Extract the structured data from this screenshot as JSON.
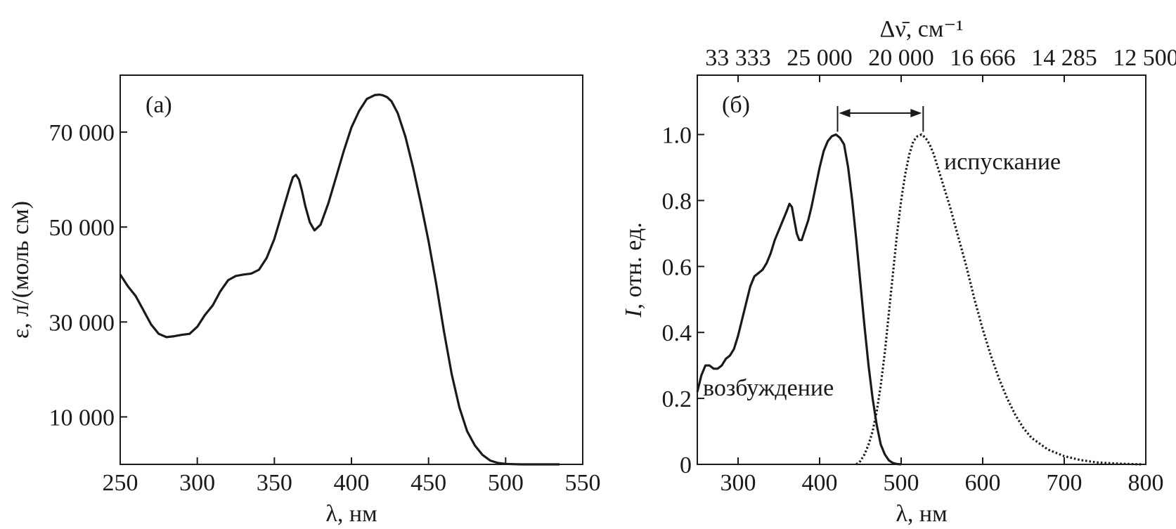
{
  "chart_data": [
    {
      "type": "line",
      "panel_label": "(а)",
      "xlabel": "λ, нм",
      "ylabel": "ε, л/(моль см)",
      "xlim": [
        250,
        550
      ],
      "ylim": [
        0,
        82000
      ],
      "x_ticks": [
        250,
        300,
        350,
        400,
        450,
        500,
        550
      ],
      "x_tick_labels": [
        "250",
        "300",
        "350",
        "400",
        "450",
        "500",
        "550"
      ],
      "y_ticks": [
        10000,
        30000,
        50000,
        70000
      ],
      "y_tick_labels": [
        "10 000",
        "30 000",
        "50 000",
        "70 000"
      ],
      "grid": false,
      "series": [
        {
          "style": "solid",
          "x": [
            250,
            255,
            260,
            265,
            270,
            275,
            280,
            285,
            290,
            295,
            300,
            305,
            310,
            315,
            320,
            325,
            330,
            335,
            340,
            345,
            350,
            355,
            360,
            362,
            364,
            366,
            368,
            370,
            373,
            376,
            380,
            385,
            390,
            395,
            400,
            405,
            410,
            415,
            418,
            420,
            423,
            426,
            430,
            435,
            440,
            445,
            450,
            455,
            460,
            465,
            470,
            475,
            480,
            485,
            490,
            495,
            500,
            505,
            510,
            520,
            535
          ],
          "y": [
            40000,
            37500,
            35500,
            32500,
            29500,
            27500,
            26800,
            27000,
            27300,
            27500,
            29000,
            31500,
            33500,
            36500,
            38800,
            39700,
            40000,
            40200,
            41000,
            43500,
            47500,
            53000,
            58500,
            60500,
            61000,
            60000,
            57500,
            54500,
            51000,
            49300,
            50500,
            55000,
            60500,
            66000,
            71000,
            74500,
            77000,
            77800,
            77900,
            77800,
            77400,
            76500,
            74000,
            69000,
            62500,
            55000,
            47000,
            38000,
            28000,
            19000,
            12000,
            7000,
            4000,
            2000,
            800,
            300,
            100,
            50,
            0,
            0,
            0
          ]
        }
      ]
    },
    {
      "type": "line",
      "panel_label": "(б)",
      "xlabel": "λ, нм",
      "ylabel_italic": "I",
      "ylabel_rest": ", отн. ед.",
      "top_axis_label": "Δν̄, см⁻¹",
      "top_tick_labels": [
        "33 333",
        "25 000",
        "20 000",
        "16 666",
        "14 285",
        "12 500"
      ],
      "top_tick_wavelengths": [
        300,
        400,
        500,
        600,
        700,
        800
      ],
      "xlim": [
        250,
        800
      ],
      "ylim": [
        0,
        1.18
      ],
      "x_ticks": [
        300,
        400,
        500,
        600,
        700,
        800
      ],
      "x_tick_labels": [
        "300",
        "400",
        "500",
        "600",
        "700",
        "800"
      ],
      "y_ticks": [
        0,
        0.2,
        0.4,
        0.6,
        0.8,
        1.0
      ],
      "y_tick_labels": [
        "0",
        "0.2",
        "0.4",
        "0.6",
        "0.8",
        "1.0"
      ],
      "grid": false,
      "annotations": {
        "excitation_label": "возбуждение",
        "emission_label": "испускание",
        "stokes_arrow_from_nm": 422,
        "stokes_arrow_to_nm": 527
      },
      "series": [
        {
          "style": "solid",
          "x": [
            250,
            255,
            260,
            265,
            270,
            275,
            280,
            285,
            290,
            295,
            300,
            305,
            310,
            315,
            320,
            325,
            330,
            335,
            340,
            345,
            350,
            355,
            360,
            363,
            366,
            369,
            372,
            375,
            378,
            382,
            386,
            390,
            395,
            400,
            405,
            410,
            415,
            420,
            425,
            430,
            435,
            440,
            445,
            450,
            455,
            460,
            465,
            470,
            475,
            480,
            485,
            490,
            495,
            500
          ],
          "y": [
            0.22,
            0.27,
            0.3,
            0.3,
            0.29,
            0.29,
            0.3,
            0.32,
            0.33,
            0.35,
            0.39,
            0.44,
            0.49,
            0.54,
            0.57,
            0.58,
            0.59,
            0.61,
            0.64,
            0.68,
            0.71,
            0.74,
            0.77,
            0.79,
            0.78,
            0.74,
            0.7,
            0.68,
            0.68,
            0.71,
            0.74,
            0.78,
            0.84,
            0.9,
            0.95,
            0.98,
            0.995,
            1.0,
            0.99,
            0.97,
            0.9,
            0.8,
            0.68,
            0.55,
            0.42,
            0.3,
            0.2,
            0.12,
            0.06,
            0.03,
            0.012,
            0.004,
            0.001,
            0
          ]
        },
        {
          "style": "dotted",
          "x": [
            445,
            450,
            455,
            460,
            465,
            470,
            475,
            480,
            485,
            490,
            495,
            500,
            505,
            510,
            515,
            520,
            525,
            530,
            535,
            540,
            545,
            550,
            560,
            570,
            580,
            590,
            600,
            610,
            620,
            630,
            640,
            650,
            660,
            680,
            700,
            720,
            740,
            760,
            780,
            795
          ],
          "y": [
            0,
            0.01,
            0.03,
            0.06,
            0.1,
            0.16,
            0.24,
            0.34,
            0.46,
            0.58,
            0.7,
            0.8,
            0.88,
            0.94,
            0.98,
            0.995,
            1.0,
            0.99,
            0.97,
            0.94,
            0.9,
            0.86,
            0.78,
            0.69,
            0.6,
            0.5,
            0.41,
            0.33,
            0.26,
            0.2,
            0.15,
            0.11,
            0.08,
            0.045,
            0.025,
            0.013,
            0.006,
            0.003,
            0.001,
            0
          ]
        }
      ]
    }
  ]
}
